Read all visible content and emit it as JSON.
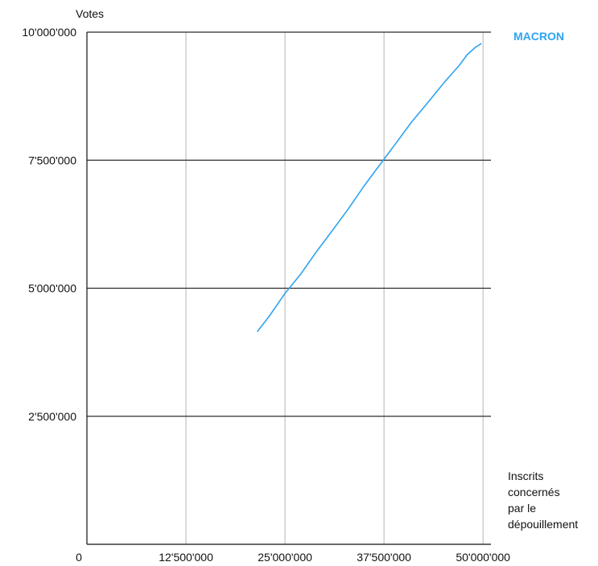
{
  "chart_data": {
    "type": "line",
    "ylabel": "Votes",
    "xlabel_lines": [
      "Inscrits",
      "concernés",
      "par le",
      "dépouillement"
    ],
    "xlim": [
      0,
      51000000
    ],
    "ylim": [
      0,
      10000000
    ],
    "x_ticks": [
      {
        "value": 0,
        "label": "0"
      },
      {
        "value": 12500000,
        "label": "12'500'000"
      },
      {
        "value": 25000000,
        "label": "25'000'000"
      },
      {
        "value": 37500000,
        "label": "37'500'000"
      },
      {
        "value": 50000000,
        "label": "50'000'000"
      }
    ],
    "y_ticks": [
      {
        "value": 2500000,
        "label": "2'500'000"
      },
      {
        "value": 5000000,
        "label": "5'000'000"
      },
      {
        "value": 7500000,
        "label": "7'500'000"
      },
      {
        "value": 10000000,
        "label": "10'000'000"
      }
    ],
    "series": [
      {
        "name": "MACRON",
        "color": "#2ea3f2",
        "x": [
          21500000,
          23000000,
          25000000,
          27000000,
          29000000,
          31000000,
          33000000,
          35000000,
          37500000,
          39000000,
          41000000,
          43000000,
          45000000,
          47000000,
          48000000,
          49000000,
          49800000
        ],
        "y": [
          4150000,
          4450000,
          4900000,
          5280000,
          5720000,
          6130000,
          6550000,
          7000000,
          7520000,
          7830000,
          8250000,
          8620000,
          9000000,
          9350000,
          9560000,
          9700000,
          9780000
        ]
      }
    ],
    "grid": {
      "horizontal": true,
      "vertical": true
    },
    "legend": "top-right"
  }
}
